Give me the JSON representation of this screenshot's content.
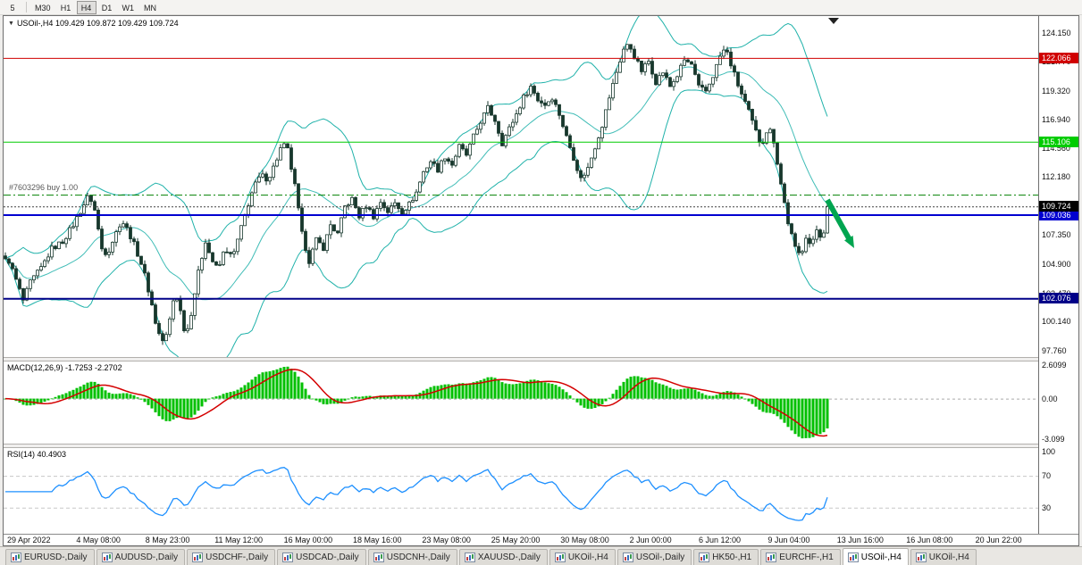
{
  "toolbar": {
    "buttons": [
      "5",
      "M30",
      "H1",
      "H4",
      "D1",
      "W1",
      "MN"
    ],
    "active": "H4"
  },
  "chart": {
    "title": "USOil-,H4 109.429 109.872 109.429 109.724"
  },
  "chart_data": {
    "type": "candlestick",
    "symbol": "USOil-",
    "timeframe": "H4",
    "ohlc": {
      "open": 109.429,
      "high": 109.872,
      "low": 109.429,
      "close": 109.724
    },
    "price_axis": {
      "min": 97.2,
      "max": 125.55,
      "ticks": [
        "124.150",
        "121.770",
        "119.320",
        "116.940",
        "114.560",
        "112.180",
        "109.800",
        "107.350",
        "104.900",
        "102.470",
        "100.140",
        "97.760"
      ]
    },
    "levels": [
      {
        "price": 122.066,
        "label": "122.066",
        "color": "#D00000",
        "width": 1,
        "name": "hline-122-066"
      },
      {
        "price": 115.106,
        "label": "115.106",
        "color": "#00CC00",
        "width": 1,
        "name": "hline-115-106"
      },
      {
        "price": 109.036,
        "label": "109.036",
        "color": "#0000D0",
        "width": 2,
        "name": "hline-109-036"
      },
      {
        "price": 102.076,
        "label": "102.076",
        "color": "#000088",
        "width": 2,
        "name": "hline-102-076"
      }
    ],
    "current_price": {
      "price": 109.724,
      "label": "109.724",
      "badge_color": "#000000"
    },
    "order": {
      "label": "#7603296 buy 1.00",
      "price": 110.7,
      "color": "#008000"
    },
    "arrow": {
      "color": "#00A550"
    },
    "bollinger": {
      "period": 20,
      "deviation": 2,
      "color": "#20B2AA"
    },
    "candle_colors": {
      "stroke": "#17372c",
      "up_fill": "#ffffff",
      "down_fill": "#17372c"
    },
    "price_path": [
      [
        6,
        105.2
      ],
      [
        14,
        103.6
      ],
      [
        22,
        101.9
      ],
      [
        30,
        103.4
      ],
      [
        42,
        104.6
      ],
      [
        54,
        106.2
      ],
      [
        66,
        106.8
      ],
      [
        78,
        108.2
      ],
      [
        90,
        109.9
      ],
      [
        96,
        110.7
      ],
      [
        102,
        109.4
      ],
      [
        110,
        106.2
      ],
      [
        116,
        105.8
      ],
      [
        124,
        107.2
      ],
      [
        132,
        108.6
      ],
      [
        140,
        107.6
      ],
      [
        148,
        106.2
      ],
      [
        156,
        104.6
      ],
      [
        164,
        102.2
      ],
      [
        172,
        99.4
      ],
      [
        180,
        98.3
      ],
      [
        186,
        100.3
      ],
      [
        192,
        102.7
      ],
      [
        198,
        101.0
      ],
      [
        204,
        98.9
      ],
      [
        210,
        100.9
      ],
      [
        218,
        104.2
      ],
      [
        226,
        106.9
      ],
      [
        232,
        105.4
      ],
      [
        240,
        104.4
      ],
      [
        248,
        106.3
      ],
      [
        256,
        105.4
      ],
      [
        264,
        107.4
      ],
      [
        272,
        109.5
      ],
      [
        280,
        111.3
      ],
      [
        288,
        112.3
      ],
      [
        296,
        112.0
      ],
      [
        304,
        113.3
      ],
      [
        312,
        114.9
      ],
      [
        318,
        114.4
      ],
      [
        326,
        111.4
      ],
      [
        334,
        107.4
      ],
      [
        342,
        105.2
      ],
      [
        350,
        106.9
      ],
      [
        358,
        106.3
      ],
      [
        366,
        108.2
      ],
      [
        374,
        107.4
      ],
      [
        382,
        109.7
      ],
      [
        390,
        110.3
      ],
      [
        398,
        108.9
      ],
      [
        406,
        109.8
      ],
      [
        414,
        108.9
      ],
      [
        422,
        110.1
      ],
      [
        430,
        109.3
      ],
      [
        438,
        110.0
      ],
      [
        446,
        109.3
      ],
      [
        454,
        109.9
      ],
      [
        462,
        110.9
      ],
      [
        470,
        112.6
      ],
      [
        478,
        113.5
      ],
      [
        486,
        112.8
      ],
      [
        494,
        113.9
      ],
      [
        502,
        113.2
      ],
      [
        510,
        114.7
      ],
      [
        518,
        114.0
      ],
      [
        526,
        115.5
      ],
      [
        534,
        116.8
      ],
      [
        542,
        117.9
      ],
      [
        550,
        116.9
      ],
      [
        558,
        115.0
      ],
      [
        566,
        116.2
      ],
      [
        574,
        117.4
      ],
      [
        582,
        118.8
      ],
      [
        590,
        119.7
      ],
      [
        598,
        118.6
      ],
      [
        606,
        118.2
      ],
      [
        614,
        118.8
      ],
      [
        622,
        117.4
      ],
      [
        630,
        115.5
      ],
      [
        638,
        113.8
      ],
      [
        646,
        112.0
      ],
      [
        654,
        112.9
      ],
      [
        662,
        114.7
      ],
      [
        670,
        116.5
      ],
      [
        678,
        118.8
      ],
      [
        686,
        120.9
      ],
      [
        694,
        122.8
      ],
      [
        700,
        123.2
      ],
      [
        706,
        122.2
      ],
      [
        714,
        121.0
      ],
      [
        722,
        121.8
      ],
      [
        730,
        120.1
      ],
      [
        738,
        120.9
      ],
      [
        746,
        119.7
      ],
      [
        754,
        120.6
      ],
      [
        762,
        121.9
      ],
      [
        770,
        121.5
      ],
      [
        778,
        119.6
      ],
      [
        786,
        119.3
      ],
      [
        794,
        120.6
      ],
      [
        802,
        122.2
      ],
      [
        808,
        122.9
      ],
      [
        816,
        121.1
      ],
      [
        824,
        119.4
      ],
      [
        832,
        118.0
      ],
      [
        840,
        116.3
      ],
      [
        848,
        114.8
      ],
      [
        856,
        116.4
      ],
      [
        862,
        115.2
      ],
      [
        870,
        111.6
      ],
      [
        878,
        108.4
      ],
      [
        886,
        106.2
      ],
      [
        892,
        105.6
      ],
      [
        898,
        107.3
      ],
      [
        904,
        106.3
      ],
      [
        910,
        107.8
      ],
      [
        916,
        107.1
      ],
      [
        922,
        108.9
      ],
      [
        926,
        109.9
      ],
      [
        930,
        109.724
      ]
    ],
    "macd": {
      "label": "MACD(12,26,9) -1.7253 -2.2702",
      "fast": 12,
      "slow": 26,
      "signal_period": 9,
      "value": -1.7253,
      "signal_value": -2.2702,
      "ticks": [
        {
          "v": 2.6099,
          "t": "2.6099"
        },
        {
          "v": 0,
          "t": "0.00"
        },
        {
          "v": -3.099,
          "t": "-3.099"
        }
      ],
      "range": [
        -3.45,
        2.85
      ],
      "hist_color": "#00C000",
      "signal_color": "#D40000"
    },
    "rsi": {
      "label": "RSI(14) 40.4903",
      "period": 14,
      "value": 40.4903,
      "ticks": [
        {
          "v": 100,
          "t": "100"
        },
        {
          "v": 70,
          "t": "70"
        },
        {
          "v": 30,
          "t": "30"
        }
      ],
      "levels": [
        70,
        30
      ],
      "range": [
        -3,
        105
      ],
      "color": "#1E90FF"
    },
    "time_axis": {
      "labels": [
        "29 Apr 2022",
        "4 May 08:00",
        "8 May 23:00",
        "11 May 12:00",
        "16 May 00:00",
        "18 May 16:00",
        "23 May 08:00",
        "25 May 20:00",
        "30 May 08:00",
        "2 Jun 00:00",
        "6 Jun 12:00",
        "9 Jun 04:00",
        "13 Jun 16:00",
        "16 Jun 08:00",
        "20 Jun 22:00"
      ]
    }
  },
  "tabbar": {
    "active_index": 10,
    "tabs": [
      "EURUSD-,Daily",
      "AUDUSD-,Daily",
      "USDCHF-,Daily",
      "USDCAD-,Daily",
      "USDCNH-,Daily",
      "XAUUSD-,Daily",
      "UKOil-,H4",
      "USOil-,Daily",
      "HK50-,H1",
      "EURCHF-,H1",
      "USOil-,H4",
      "UKOil-,H4"
    ]
  }
}
